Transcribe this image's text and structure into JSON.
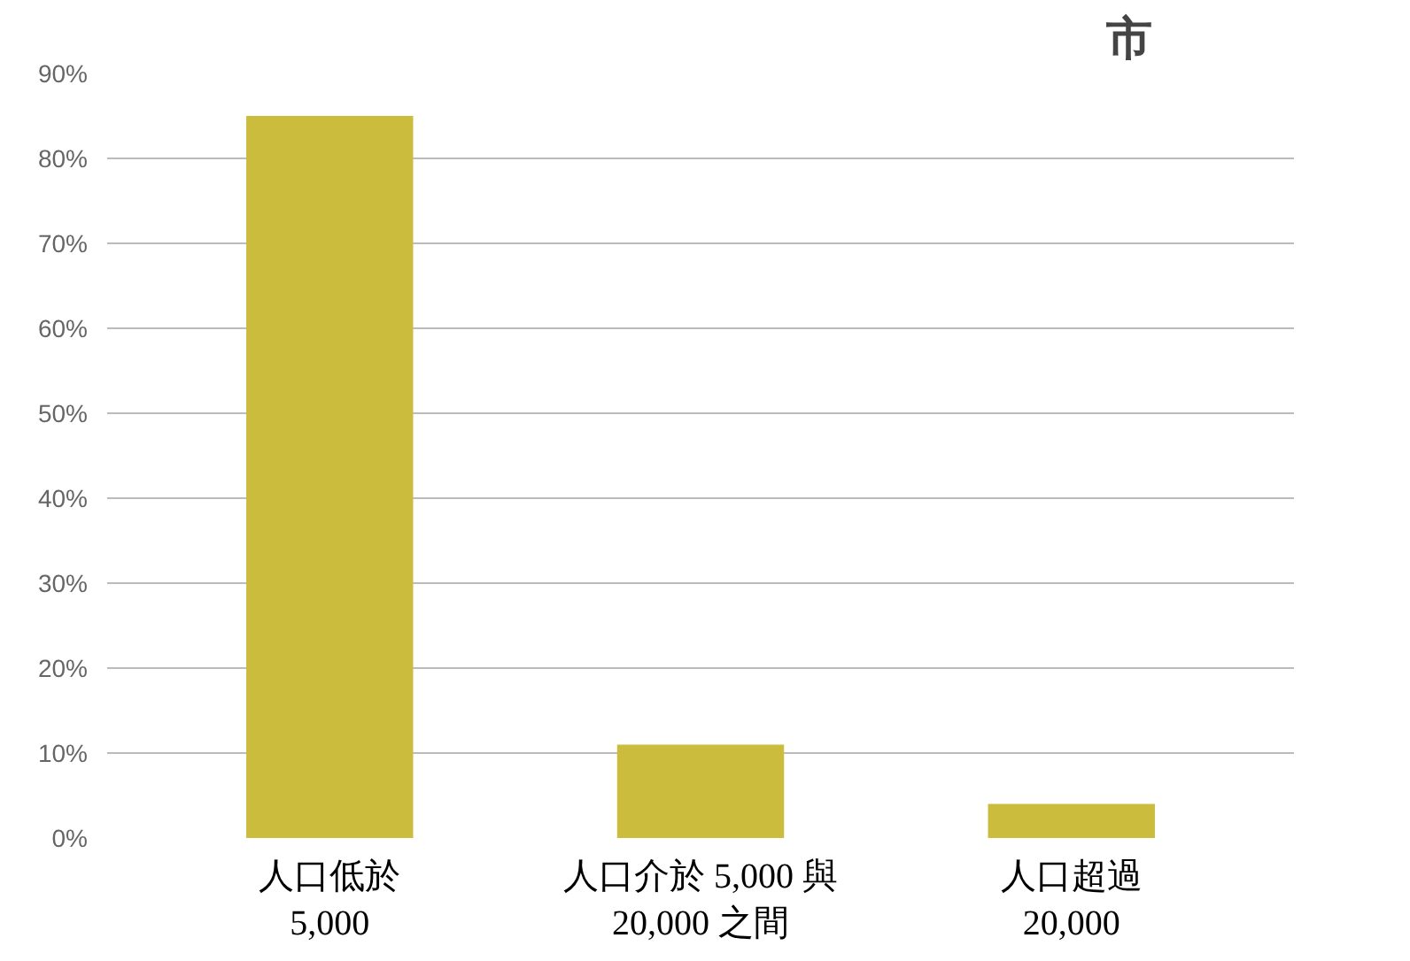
{
  "chart_data": {
    "type": "bar",
    "title": "市",
    "categories": [
      "人口低於\n5,000",
      "人口介於 5,000 與\n20,000 之間",
      "人口超過\n20,000"
    ],
    "values": [
      85,
      11,
      4
    ],
    "color": "#cbbc3e",
    "ylim": [
      0,
      90
    ],
    "yticks": [
      {
        "value": 0,
        "label": "0%"
      },
      {
        "value": 10,
        "label": "10%"
      },
      {
        "value": 20,
        "label": "20%"
      },
      {
        "value": 30,
        "label": "30%"
      },
      {
        "value": 40,
        "label": "40%"
      },
      {
        "value": 50,
        "label": "50%"
      },
      {
        "value": 60,
        "label": "60%"
      },
      {
        "value": 70,
        "label": "70%"
      },
      {
        "value": 80,
        "label": "80%"
      },
      {
        "value": 90,
        "label": "90%"
      }
    ],
    "grid": "y"
  }
}
